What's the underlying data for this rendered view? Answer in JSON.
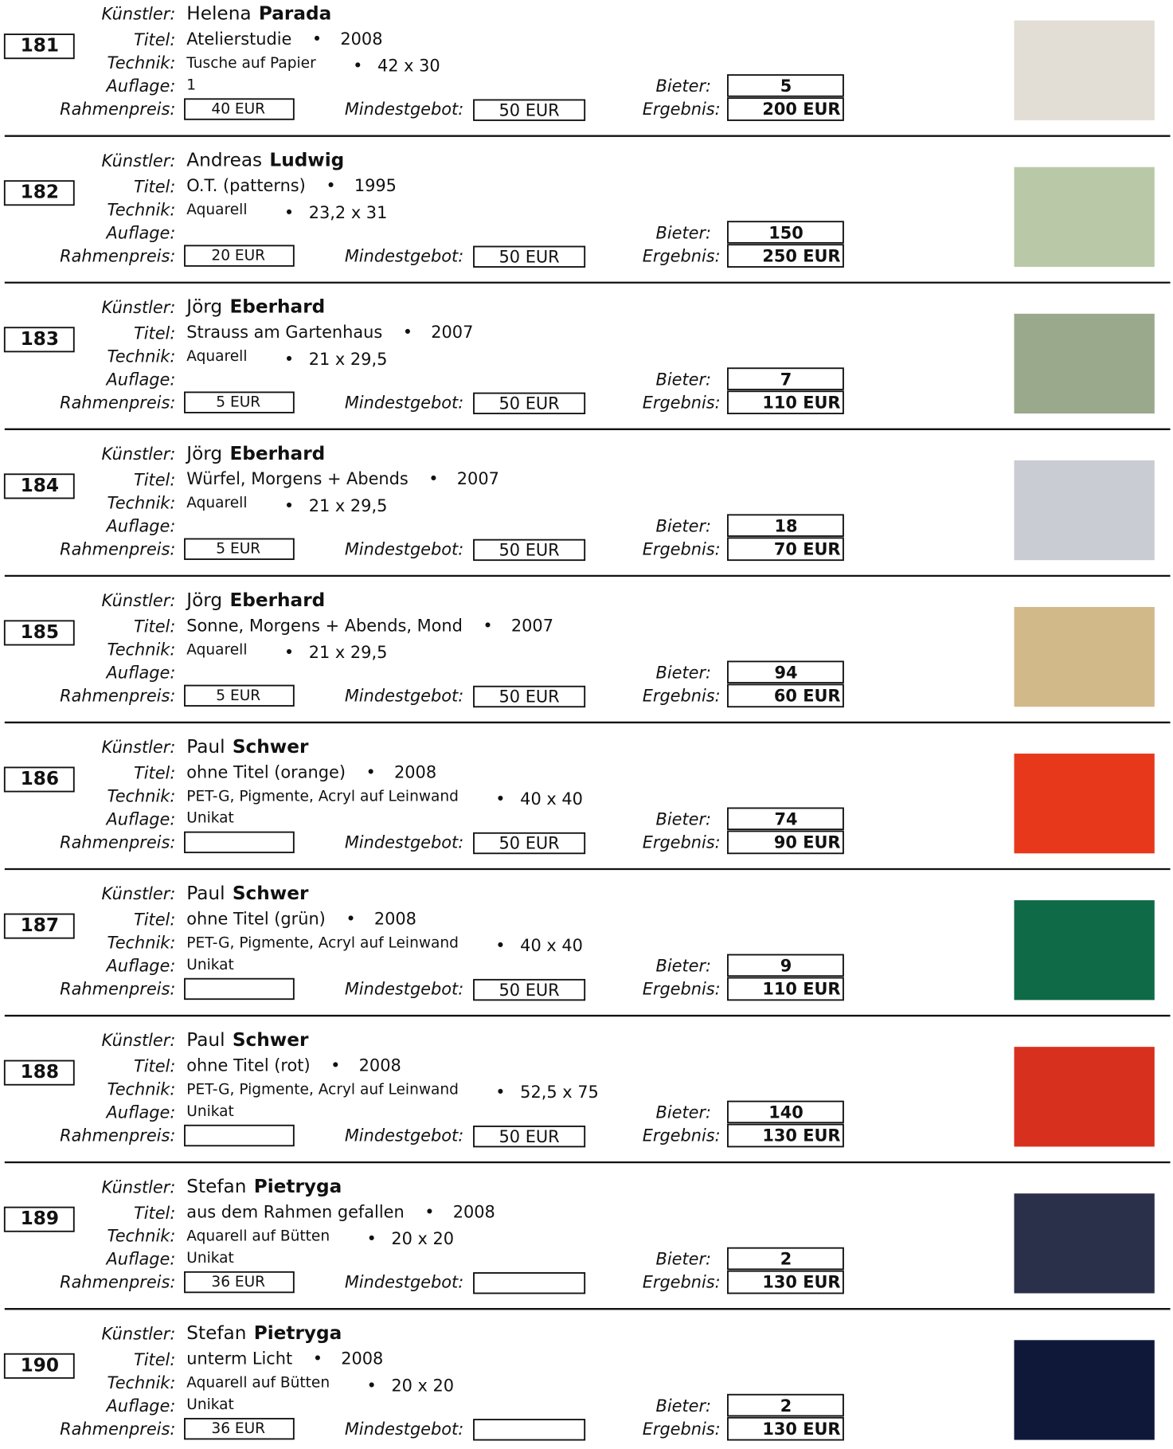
{
  "labels": {
    "artist": "Künstler:",
    "title": "Titel:",
    "technique": "Technik:",
    "edition": "Auflage:",
    "frame": "Rahmenpreis:",
    "minimum": "Mindestgebot:",
    "bidder": "Bieter:",
    "result": "Ergebnis:",
    "bullet": "•"
  },
  "items": [
    {
      "number": "181",
      "first": "Helena",
      "last": "Parada",
      "title": "Atelierstudie",
      "year": "2008",
      "technique": "Tusche auf Papier",
      "size": "42 x 30",
      "edition": "1",
      "frame": "40 EUR",
      "minimum": "50 EUR",
      "bidder": "5",
      "result": "200 EUR"
    },
    {
      "number": "182",
      "first": "Andreas",
      "last": "Ludwig",
      "title": "O.T. (patterns)",
      "year": "1995",
      "technique": "Aquarell",
      "size": "23,2 x 31",
      "edition": null,
      "frame": "20 EUR",
      "minimum": "50 EUR",
      "bidder": "150",
      "result": "250 EUR"
    },
    {
      "number": "183",
      "first": "Jörg",
      "last": "Eberhard",
      "title": "Strauss am Gartenhaus",
      "year": "2007",
      "technique": "Aquarell",
      "size": "21 x 29,5",
      "edition": null,
      "frame": "5 EUR",
      "minimum": "50 EUR",
      "bidder": "7",
      "result": "110 EUR"
    },
    {
      "number": "184",
      "first": "Jörg",
      "last": "Eberhard",
      "title": "Würfel, Morgens + Abends",
      "year": "2007",
      "technique": "Aquarell",
      "size": "21 x 29,5",
      "edition": null,
      "frame": "5 EUR",
      "minimum": "50 EUR",
      "bidder": "18",
      "result": "70 EUR"
    },
    {
      "number": "185",
      "first": "Jörg",
      "last": "Eberhard",
      "title": "Sonne, Morgens + Abends, Mond",
      "year": "2007",
      "technique": "Aquarell",
      "size": "21 x 29,5",
      "edition": null,
      "frame": "5 EUR",
      "minimum": "50 EUR",
      "bidder": "94",
      "result": "60 EUR"
    },
    {
      "number": "186",
      "first": "Paul",
      "last": "Schwer",
      "title": "ohne Titel (orange)",
      "year": "2008",
      "technique": "PET-G, Pigmente, Acryl auf Leinwand",
      "size": "40 x 40",
      "edition": "Unikat",
      "frame": null,
      "minimum": "50 EUR",
      "bidder": "74",
      "result": "90 EUR"
    },
    {
      "number": "187",
      "first": "Paul",
      "last": "Schwer",
      "title": "ohne Titel (grün)",
      "year": "2008",
      "technique": "PET-G, Pigmente, Acryl auf Leinwand",
      "size": "40 x 40",
      "edition": "Unikat",
      "frame": null,
      "minimum": "50 EUR",
      "bidder": "9",
      "result": "110 EUR"
    },
    {
      "number": "188",
      "first": "Paul",
      "last": "Schwer",
      "title": "ohne Titel (rot)",
      "year": "2008",
      "technique": "PET-G, Pigmente, Acryl auf Leinwand",
      "size": "52,5 x 75",
      "edition": "Unikat",
      "frame": null,
      "minimum": "50 EUR",
      "bidder": "140",
      "result": "130 EUR"
    },
    {
      "number": "189",
      "first": "Stefan",
      "last": "Pietryga",
      "title": "aus dem Rahmen gefallen",
      "year": "2008",
      "technique": "Aquarell auf Bütten",
      "size": "20 x 20",
      "edition": "Unikat",
      "frame": "36 EUR",
      "minimum": null,
      "bidder": "2",
      "result": "130 EUR"
    },
    {
      "number": "190",
      "first": "Stefan",
      "last": "Pietryga",
      "title": "unterm Licht",
      "year": "2008",
      "technique": "Aquarell auf Bütten",
      "size": "20 x 20",
      "edition": "Unikat",
      "frame": "36 EUR",
      "minimum": null,
      "bidder": "2",
      "result": "130 EUR"
    }
  ]
}
